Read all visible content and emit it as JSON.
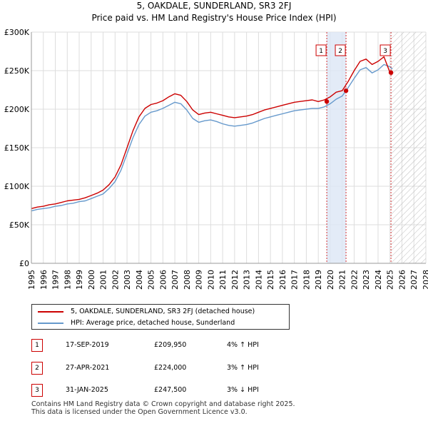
{
  "title_line1": "5, OAKDALE, SUNDERLAND, SR3 2FJ",
  "title_line2": "Price paid vs. HM Land Registry's House Price Index (HPI)",
  "chart_data": {
    "type": "line",
    "xlim": [
      1995,
      2028
    ],
    "ylim": [
      0,
      300000
    ],
    "y_ticks": [
      0,
      50000,
      100000,
      150000,
      200000,
      250000,
      300000
    ],
    "y_tick_labels": [
      "£0",
      "£50K",
      "£100K",
      "£150K",
      "£200K",
      "£250K",
      "£300K"
    ],
    "x_ticks": [
      1995,
      1996,
      1997,
      1998,
      1999,
      2000,
      2001,
      2002,
      2003,
      2004,
      2005,
      2006,
      2007,
      2008,
      2009,
      2010,
      2011,
      2012,
      2013,
      2014,
      2015,
      2016,
      2017,
      2018,
      2019,
      2020,
      2021,
      2022,
      2023,
      2024,
      2025,
      2026,
      2027,
      2028
    ],
    "grid": true,
    "shaded_period": [
      2019.71,
      2021.32
    ],
    "forecast_hatch_from": 2025.08,
    "series": [
      {
        "name": "5, OAKDALE, SUNDERLAND, SR3 2FJ (detached house)",
        "color": "#cc0000",
        "x": [
          1995.0,
          1995.5,
          1996.0,
          1996.5,
          1997.0,
          1997.5,
          1998.0,
          1998.5,
          1999.0,
          1999.5,
          2000.0,
          2000.5,
          2001.0,
          2001.5,
          2002.0,
          2002.5,
          2003.0,
          2003.5,
          2004.0,
          2004.5,
          2005.0,
          2005.5,
          2006.0,
          2006.5,
          2007.0,
          2007.5,
          2008.0,
          2008.5,
          2009.0,
          2009.5,
          2010.0,
          2010.5,
          2011.0,
          2011.5,
          2012.0,
          2012.5,
          2013.0,
          2013.5,
          2014.0,
          2014.5,
          2015.0,
          2015.5,
          2016.0,
          2016.5,
          2017.0,
          2017.5,
          2018.0,
          2018.5,
          2019.0,
          2019.5,
          2020.0,
          2020.5,
          2021.0,
          2021.5,
          2022.0,
          2022.5,
          2023.0,
          2023.5,
          2024.0,
          2024.5,
          2025.0,
          2025.2
        ],
        "values": [
          71000,
          73000,
          74000,
          76000,
          77000,
          79000,
          81000,
          82000,
          83000,
          85000,
          88000,
          91000,
          95000,
          102000,
          112000,
          128000,
          150000,
          172000,
          190000,
          201000,
          206000,
          208000,
          211000,
          216000,
          220000,
          218000,
          210000,
          199000,
          193000,
          195000,
          196000,
          194000,
          192000,
          190000,
          189000,
          190000,
          191000,
          193000,
          196000,
          199000,
          201000,
          203000,
          205000,
          207000,
          209000,
          210000,
          211000,
          212000,
          209950,
          212000,
          216000,
          222000,
          224000,
          236000,
          250000,
          262000,
          265000,
          258000,
          262000,
          268000,
          247500,
          245000
        ]
      },
      {
        "name": "HPI: Average price, detached house, Sunderland",
        "color": "#6699cc",
        "x": [
          1995.0,
          1995.5,
          1996.0,
          1996.5,
          1997.0,
          1997.5,
          1998.0,
          1998.5,
          1999.0,
          1999.5,
          2000.0,
          2000.5,
          2001.0,
          2001.5,
          2002.0,
          2002.5,
          2003.0,
          2003.5,
          2004.0,
          2004.5,
          2005.0,
          2005.5,
          2006.0,
          2006.5,
          2007.0,
          2007.5,
          2008.0,
          2008.5,
          2009.0,
          2009.5,
          2010.0,
          2010.5,
          2011.0,
          2011.5,
          2012.0,
          2012.5,
          2013.0,
          2013.5,
          2014.0,
          2014.5,
          2015.0,
          2015.5,
          2016.0,
          2016.5,
          2017.0,
          2017.5,
          2018.0,
          2018.5,
          2019.0,
          2019.5,
          2020.0,
          2020.5,
          2021.0,
          2021.5,
          2022.0,
          2022.5,
          2023.0,
          2023.5,
          2024.0,
          2024.5,
          2025.0,
          2025.2
        ],
        "values": [
          68000,
          70000,
          71000,
          72000,
          74000,
          75000,
          77000,
          78000,
          80000,
          81000,
          84000,
          87000,
          90000,
          97000,
          106000,
          121000,
          142000,
          163000,
          180000,
          191000,
          196000,
          198000,
          201000,
          205000,
          209000,
          207000,
          199000,
          188000,
          183000,
          185000,
          186000,
          184000,
          181000,
          179000,
          178000,
          179000,
          180000,
          182000,
          185000,
          188000,
          190000,
          192000,
          194000,
          196000,
          198000,
          199000,
          200000,
          201000,
          201000,
          203000,
          207000,
          213000,
          217000,
          228000,
          240000,
          251000,
          254000,
          247000,
          251000,
          258000,
          255000,
          252000
        ]
      }
    ],
    "markers": [
      {
        "label": "1",
        "x": 2019.71,
        "y": 209950
      },
      {
        "label": "2",
        "x": 2021.32,
        "y": 224000
      },
      {
        "label": "3",
        "x": 2025.08,
        "y": 247500
      }
    ]
  },
  "legend": {
    "property": "5, OAKDALE, SUNDERLAND, SR3 2FJ (detached house)",
    "hpi": "HPI: Average price, detached house, Sunderland"
  },
  "transactions": [
    {
      "num": "1",
      "date": "17-SEP-2019",
      "price": "£209,950",
      "hpi": "4% ↑ HPI"
    },
    {
      "num": "2",
      "date": "27-APR-2021",
      "price": "£224,000",
      "hpi": "3% ↑ HPI"
    },
    {
      "num": "3",
      "date": "31-JAN-2025",
      "price": "£247,500",
      "hpi": "3% ↓ HPI"
    }
  ],
  "footer_line1": "Contains HM Land Registry data © Crown copyright and database right 2025.",
  "footer_line2": "This data is licensed under the Open Government Licence v3.0."
}
